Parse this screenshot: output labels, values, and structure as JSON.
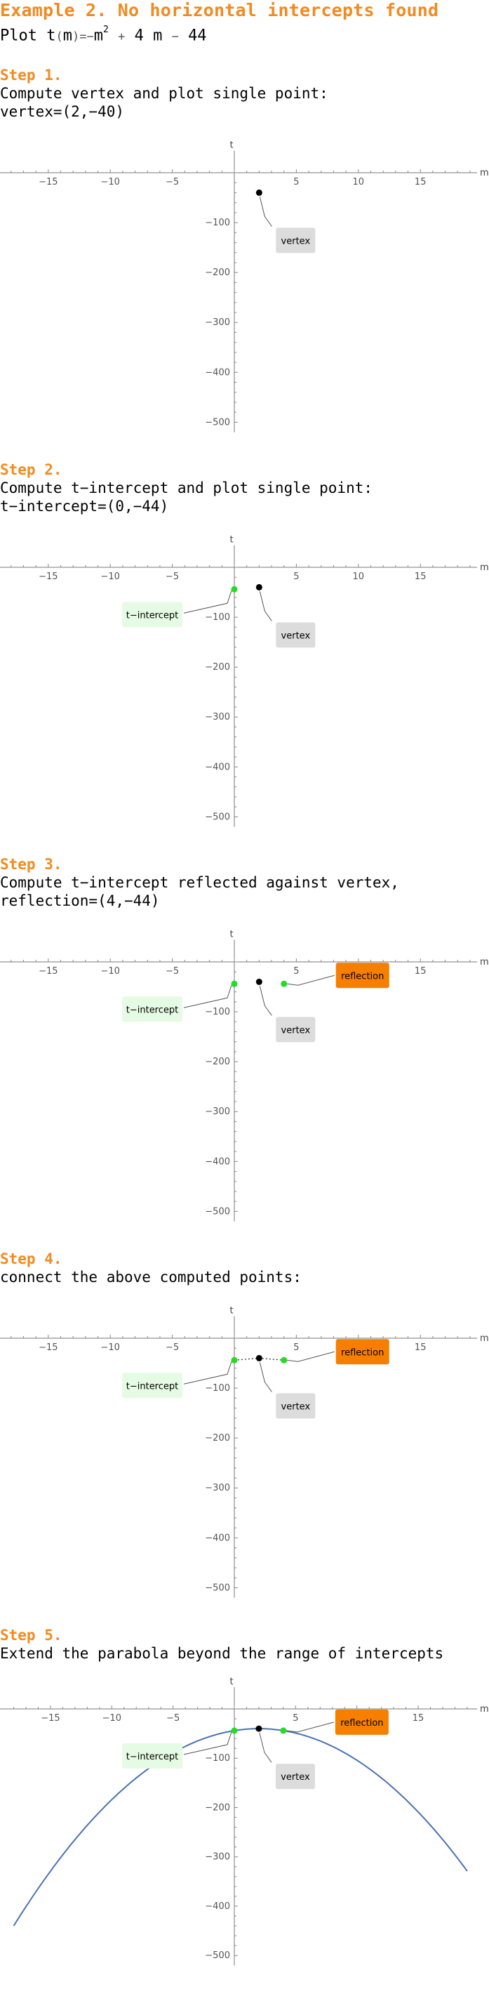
{
  "title": "Example 2. No horizontal intercepts found",
  "function": {
    "prefix": "Plot",
    "fname": "t",
    "arg": "m",
    "eq": "=",
    "neg": "−",
    "var": "m",
    "exp": "2",
    "plus": "+",
    "coef": "4",
    "var2": "m",
    "minus": "−",
    "const": "44"
  },
  "steps": [
    {
      "heading": "Step 1.",
      "lines": [
        "Compute vertex and plot single point:",
        "vertex=(2,−40)"
      ]
    },
    {
      "heading": "Step 2.",
      "lines": [
        "Compute t−intercept and plot single point:",
        "t−intercept=(0,−44)"
      ]
    },
    {
      "heading": "Step 3.",
      "lines": [
        "Compute t−intercept reflected against vertex,",
        "reflection=(4,−44)"
      ]
    },
    {
      "heading": "Step 4.",
      "lines": [
        "connect the above computed points:"
      ]
    },
    {
      "heading": "Step 5.",
      "lines": [
        "Extend the parabola beyond the range of intercepts"
      ]
    }
  ],
  "chart_data": [
    {
      "type": "scatter",
      "xlabel": "m",
      "ylabel": "t",
      "xlim": [
        -19,
        20
      ],
      "ylim": [
        -520,
        30
      ],
      "x_ticks": [
        -15,
        -10,
        -5,
        5,
        10,
        15
      ],
      "y_ticks": [
        -100,
        -200,
        -300,
        -400,
        -500
      ],
      "points": [
        {
          "name": "vertex",
          "x": 2,
          "y": -40,
          "color": "#000000"
        }
      ],
      "labels": [
        {
          "text": "vertex",
          "style": "gray"
        }
      ],
      "connect": false,
      "curve": false
    },
    {
      "type": "scatter",
      "xlabel": "m",
      "ylabel": "t",
      "xlim": [
        -19,
        20
      ],
      "ylim": [
        -520,
        30
      ],
      "x_ticks": [
        -15,
        -10,
        -5,
        5,
        10,
        15
      ],
      "y_ticks": [
        -100,
        -200,
        -300,
        -400,
        -500
      ],
      "points": [
        {
          "name": "t-intercept",
          "x": 0,
          "y": -44,
          "color": "#22dd22"
        },
        {
          "name": "vertex",
          "x": 2,
          "y": -40,
          "color": "#000000"
        }
      ],
      "labels": [
        {
          "text": "t−intercept",
          "style": "green"
        },
        {
          "text": "vertex",
          "style": "gray"
        }
      ],
      "connect": false,
      "curve": false
    },
    {
      "type": "scatter",
      "xlabel": "m",
      "ylabel": "t",
      "xlim": [
        -19,
        20
      ],
      "ylim": [
        -520,
        30
      ],
      "x_ticks": [
        -15,
        -10,
        -5,
        5,
        10,
        15
      ],
      "y_ticks": [
        -100,
        -200,
        -300,
        -400,
        -500
      ],
      "points": [
        {
          "name": "t-intercept",
          "x": 0,
          "y": -44,
          "color": "#22dd22"
        },
        {
          "name": "vertex",
          "x": 2,
          "y": -40,
          "color": "#000000"
        },
        {
          "name": "reflection",
          "x": 4,
          "y": -44,
          "color": "#22dd22"
        }
      ],
      "labels": [
        {
          "text": "t−intercept",
          "style": "green"
        },
        {
          "text": "vertex",
          "style": "gray"
        },
        {
          "text": "reflection",
          "style": "orange"
        }
      ],
      "connect": false,
      "curve": false
    },
    {
      "type": "line",
      "xlabel": "m",
      "ylabel": "t",
      "xlim": [
        -19,
        20
      ],
      "ylim": [
        -520,
        30
      ],
      "x_ticks": [
        -15,
        -10,
        -5,
        5,
        10,
        15
      ],
      "y_ticks": [
        -100,
        -200,
        -300,
        -400,
        -500
      ],
      "points": [
        {
          "name": "t-intercept",
          "x": 0,
          "y": -44,
          "color": "#22dd22"
        },
        {
          "name": "vertex",
          "x": 2,
          "y": -40,
          "color": "#000000"
        },
        {
          "name": "reflection",
          "x": 4,
          "y": -44,
          "color": "#22dd22"
        }
      ],
      "labels": [
        {
          "text": "t−intercept",
          "style": "green"
        },
        {
          "text": "vertex",
          "style": "gray"
        },
        {
          "text": "reflection",
          "style": "orange"
        }
      ],
      "connect": true,
      "curve": false
    },
    {
      "type": "line",
      "xlabel": "m",
      "ylabel": "t",
      "xlim": [
        -19,
        20
      ],
      "ylim": [
        -520,
        30
      ],
      "x_ticks": [
        -15,
        -10,
        -5,
        5,
        10,
        15
      ],
      "y_ticks": [
        -100,
        -200,
        -300,
        -400,
        -500
      ],
      "points": [
        {
          "name": "t-intercept",
          "x": 0,
          "y": -44,
          "color": "#22dd22"
        },
        {
          "name": "vertex",
          "x": 2,
          "y": -40,
          "color": "#000000"
        },
        {
          "name": "reflection",
          "x": 4,
          "y": -44,
          "color": "#22dd22"
        }
      ],
      "labels": [
        {
          "text": "t−intercept",
          "style": "green"
        },
        {
          "text": "vertex",
          "style": "gray"
        },
        {
          "text": "reflection",
          "style": "orange"
        }
      ],
      "connect": false,
      "curve": true,
      "curve_range": [
        -18,
        19
      ],
      "curve_color": "#4a72b0"
    }
  ]
}
